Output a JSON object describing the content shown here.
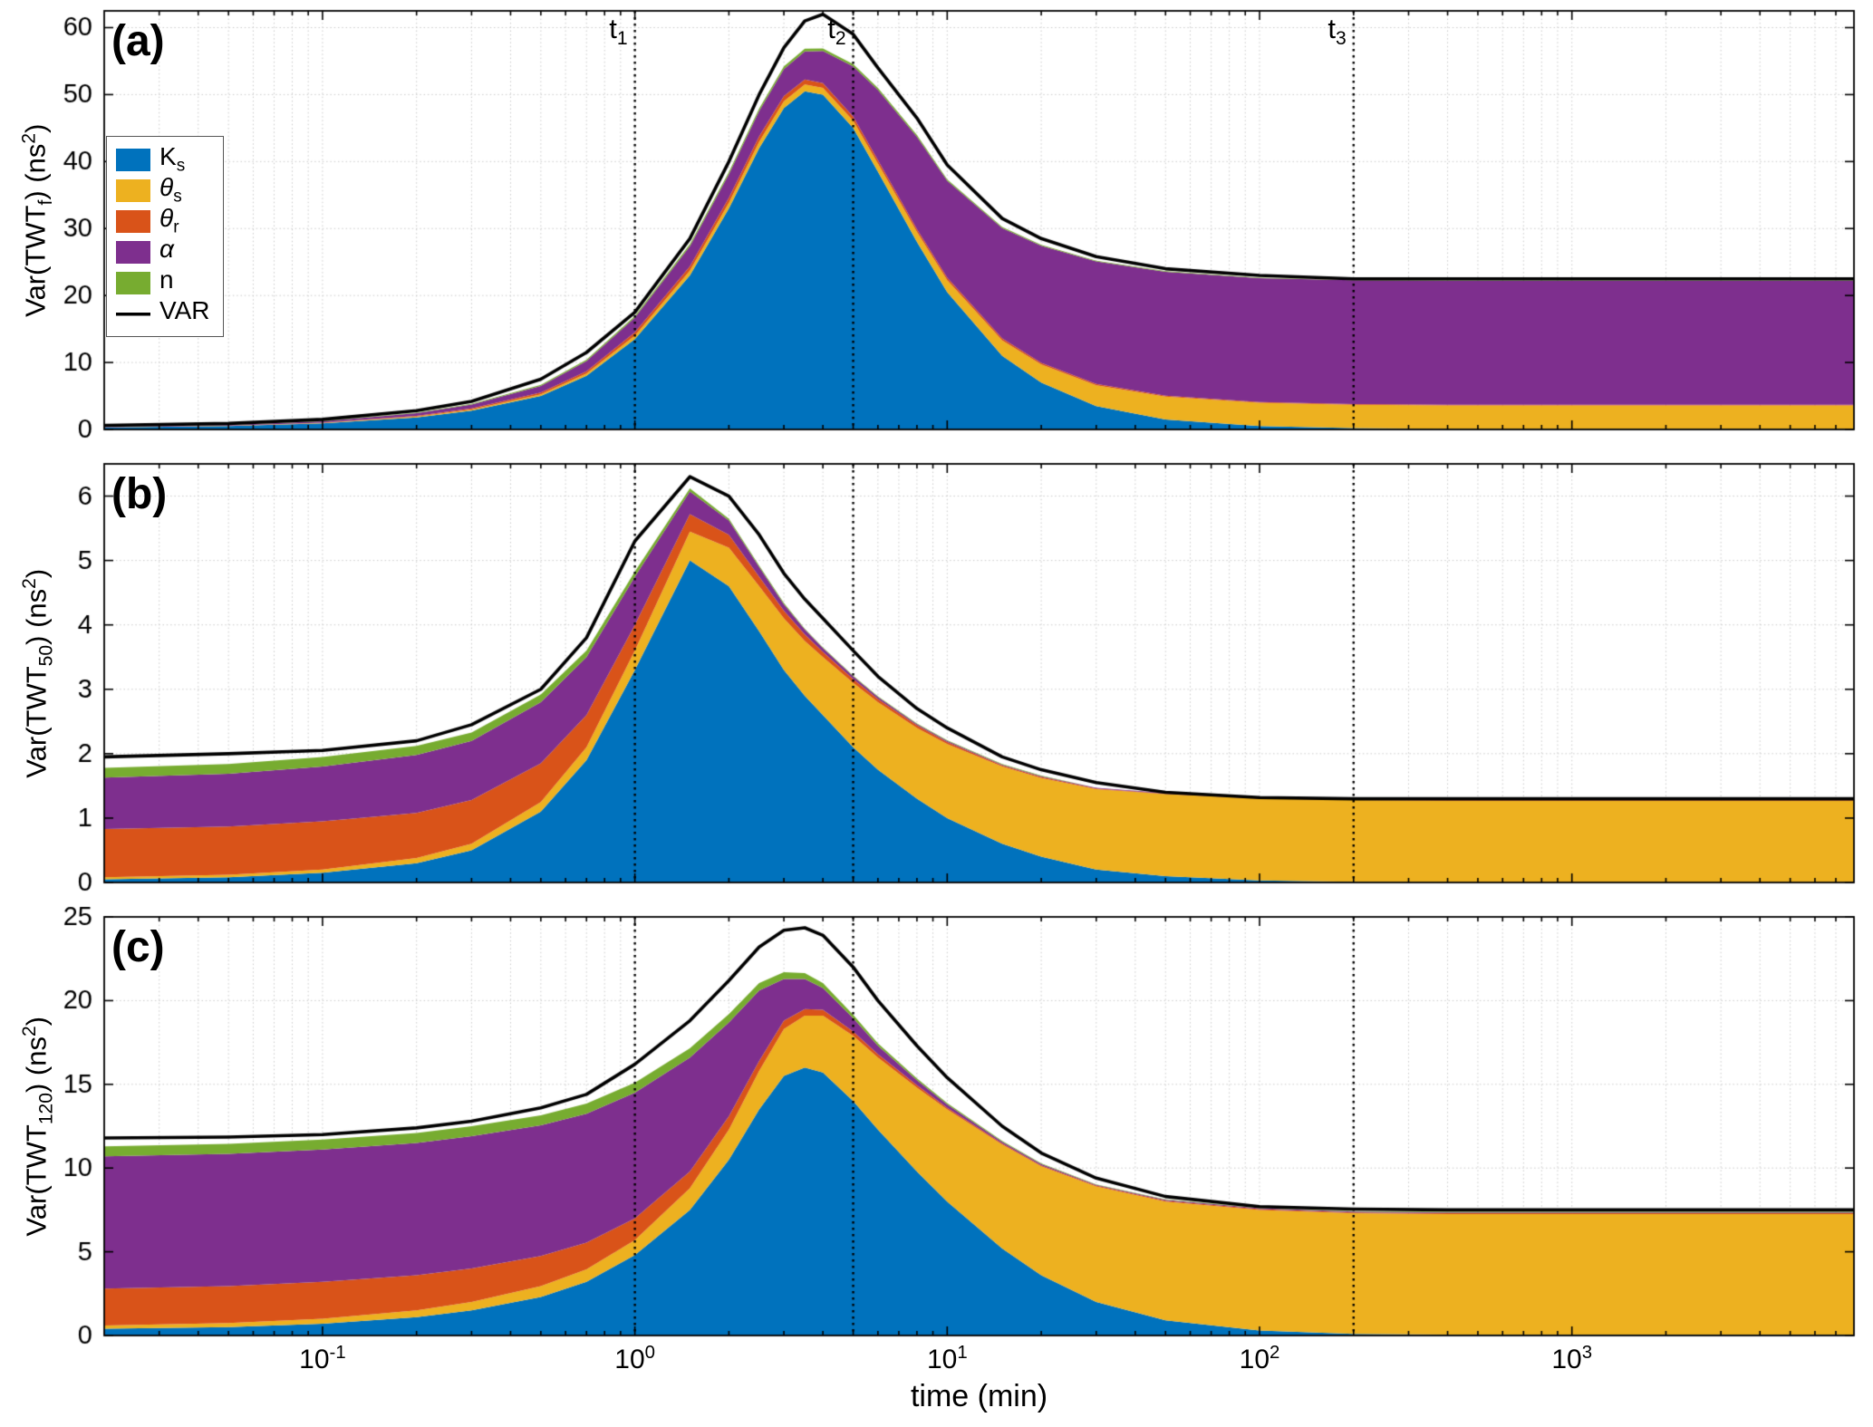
{
  "figure": {
    "xlabel": "time (min)",
    "xlim": [
      0.02,
      8000
    ],
    "x_ticks": [
      {
        "value": 0.1,
        "base": "10",
        "exp": "-1"
      },
      {
        "value": 1,
        "base": "10",
        "exp": "0"
      },
      {
        "value": 10,
        "base": "10",
        "exp": "1"
      },
      {
        "value": 100,
        "base": "10",
        "exp": "2"
      },
      {
        "value": 1000,
        "base": "10",
        "exp": "3"
      }
    ],
    "t_lines": [
      {
        "x": 1,
        "main": "t",
        "sub": "1"
      },
      {
        "x": 5,
        "main": "t",
        "sub": "2"
      },
      {
        "x": 200,
        "main": "t",
        "sub": "3"
      }
    ]
  },
  "colors": {
    "Ks": "#0072BD",
    "theta_s": "#EDB120",
    "theta_r": "#D95319",
    "alpha": "#7E2F8E",
    "n": "#77AC30",
    "VAR": "#000000",
    "grid": "#c9c9c9"
  },
  "legend": {
    "entries": [
      {
        "main": "K",
        "sub": "s",
        "series": "Ks"
      },
      {
        "main": "θ",
        "sub": "s",
        "series": "theta_s"
      },
      {
        "main": "θ",
        "sub": "r",
        "series": "theta_r"
      },
      {
        "main": "α",
        "sub": "",
        "series": "alpha"
      },
      {
        "main": "n",
        "sub": "",
        "series": "n"
      },
      {
        "main": "VAR",
        "sub": "",
        "series": "VAR"
      }
    ]
  },
  "chart_data": [
    {
      "type": "area",
      "panel_label": "(a)",
      "ylabel": {
        "pre": "Var(TWT",
        "sub": "f",
        "mid": ") (ns",
        "sup": "2",
        "post": ")"
      },
      "ylim": [
        0,
        62.5
      ],
      "yticks": [
        0,
        10,
        20,
        30,
        40,
        50,
        60
      ],
      "x": [
        0.02,
        0.05,
        0.1,
        0.2,
        0.3,
        0.5,
        0.7,
        1,
        1.5,
        2,
        2.5,
        3,
        3.5,
        4,
        5,
        6,
        8,
        10,
        15,
        20,
        30,
        50,
        100,
        200,
        400,
        1000,
        3000,
        8000
      ],
      "series": [
        {
          "name": "Ks",
          "values": [
            0.3,
            0.5,
            0.9,
            1.8,
            2.8,
            5,
            8,
            13.5,
            23,
            33,
            42,
            48,
            50.5,
            50,
            45,
            38.5,
            28,
            20.5,
            11,
            7,
            3.5,
            1.5,
            0.5,
            0.2,
            0.1,
            0.1,
            0.1,
            0.1
          ]
        },
        {
          "name": "theta_s",
          "values": [
            0.03,
            0.05,
            0.08,
            0.12,
            0.18,
            0.25,
            0.35,
            0.5,
            0.7,
            0.85,
            0.95,
            1,
            1,
            1,
            1.1,
            1.2,
            1.5,
            1.8,
            2.3,
            2.7,
            3.1,
            3.4,
            3.5,
            3.5,
            3.5,
            3.5,
            3.5,
            3.5
          ]
        },
        {
          "name": "theta_r",
          "values": [
            0.02,
            0.03,
            0.05,
            0.1,
            0.15,
            0.25,
            0.35,
            0.5,
            0.65,
            0.75,
            0.8,
            0.8,
            0.75,
            0.7,
            0.6,
            0.5,
            0.4,
            0.35,
            0.28,
            0.24,
            0.2,
            0.15,
            0.1,
            0.1,
            0.1,
            0.1,
            0.1,
            0.1
          ]
        },
        {
          "name": "alpha",
          "values": [
            0.05,
            0.1,
            0.2,
            0.4,
            0.6,
            1,
            1.5,
            2.2,
            3,
            3.5,
            3.8,
            4,
            4.2,
            4.8,
            7.5,
            10.5,
            13.8,
            14.5,
            16.5,
            17.5,
            18.3,
            18.5,
            18.5,
            18.5,
            18.5,
            18.5,
            18.5,
            18.5
          ]
        },
        {
          "name": "n",
          "values": [
            0.02,
            0.03,
            0.05,
            0.08,
            0.1,
            0.15,
            0.2,
            0.25,
            0.3,
            0.35,
            0.38,
            0.4,
            0.4,
            0.4,
            0.35,
            0.3,
            0.25,
            0.2,
            0.15,
            0.12,
            0.1,
            0.08,
            0.05,
            0.05,
            0.05,
            0.05,
            0.05,
            0.05
          ]
        }
      ],
      "total": {
        "name": "VAR",
        "values": [
          0.6,
          0.9,
          1.5,
          2.8,
          4.2,
          7.5,
          11.5,
          17.5,
          28.5,
          40,
          50,
          57,
          61,
          62,
          59,
          54,
          46.5,
          39.5,
          31.5,
          28.5,
          25.8,
          24,
          23,
          22.5,
          22.5,
          22.5,
          22.5,
          22.5
        ]
      }
    },
    {
      "type": "area",
      "panel_label": "(b)",
      "ylabel": {
        "pre": "Var(TWT",
        "sub": "50",
        "mid": ") (ns",
        "sup": "2",
        "post": ")"
      },
      "ylim": [
        0,
        6.5
      ],
      "yticks": [
        0,
        1,
        2,
        3,
        4,
        5,
        6
      ],
      "x": [
        0.02,
        0.05,
        0.1,
        0.2,
        0.3,
        0.5,
        0.7,
        1,
        1.5,
        2,
        2.5,
        3,
        3.5,
        4,
        5,
        6,
        8,
        10,
        15,
        20,
        30,
        50,
        100,
        200,
        400,
        1000,
        3000,
        8000
      ],
      "series": [
        {
          "name": "Ks",
          "values": [
            0.05,
            0.08,
            0.15,
            0.3,
            0.5,
            1.1,
            1.9,
            3.3,
            5,
            4.6,
            3.9,
            3.3,
            2.9,
            2.6,
            2.1,
            1.75,
            1.3,
            1,
            0.6,
            0.4,
            0.2,
            0.1,
            0.03,
            0.01,
            0,
            0,
            0,
            0
          ]
        },
        {
          "name": "theta_s",
          "values": [
            0.03,
            0.04,
            0.05,
            0.08,
            0.1,
            0.15,
            0.2,
            0.3,
            0.45,
            0.6,
            0.7,
            0.8,
            0.85,
            0.9,
            1,
            1.05,
            1.1,
            1.15,
            1.2,
            1.22,
            1.25,
            1.27,
            1.27,
            1.27,
            1.27,
            1.27,
            1.27,
            1.27
          ]
        },
        {
          "name": "theta_r",
          "values": [
            0.75,
            0.75,
            0.75,
            0.7,
            0.68,
            0.6,
            0.5,
            0.4,
            0.27,
            0.2,
            0.15,
            0.12,
            0.1,
            0.08,
            0.06,
            0.05,
            0.04,
            0.03,
            0.02,
            0.02,
            0.01,
            0.01,
            0.01,
            0.01,
            0.01,
            0.01,
            0.01,
            0.01
          ]
        },
        {
          "name": "alpha",
          "values": [
            0.8,
            0.82,
            0.85,
            0.9,
            0.92,
            0.95,
            0.9,
            0.75,
            0.35,
            0.22,
            0.15,
            0.1,
            0.08,
            0.06,
            0.04,
            0.03,
            0.02,
            0.02,
            0.01,
            0.01,
            0.01,
            0.01,
            0.01,
            0.01,
            0.01,
            0.01,
            0.01,
            0.01
          ]
        },
        {
          "name": "n",
          "values": [
            0.15,
            0.15,
            0.15,
            0.14,
            0.13,
            0.12,
            0.1,
            0.08,
            0.05,
            0.03,
            0.02,
            0.02,
            0.01,
            0.01,
            0.01,
            0.01,
            0.01,
            0.01,
            0.01,
            0.01,
            0,
            0,
            0,
            0,
            0,
            0,
            0,
            0
          ]
        }
      ],
      "total": {
        "name": "VAR",
        "values": [
          1.95,
          2,
          2.05,
          2.2,
          2.45,
          3,
          3.8,
          5.3,
          6.3,
          6,
          5.4,
          4.8,
          4.4,
          4.1,
          3.6,
          3.2,
          2.7,
          2.4,
          1.95,
          1.75,
          1.55,
          1.4,
          1.32,
          1.3,
          1.3,
          1.3,
          1.3,
          1.3
        ]
      }
    },
    {
      "type": "area",
      "panel_label": "(c)",
      "ylabel": {
        "pre": "Var(TWT",
        "sub": "120",
        "mid": ") (ns",
        "sup": "2",
        "post": ")"
      },
      "ylim": [
        0,
        25
      ],
      "yticks": [
        0,
        5,
        10,
        15,
        20,
        25
      ],
      "x": [
        0.02,
        0.05,
        0.1,
        0.2,
        0.3,
        0.5,
        0.7,
        1,
        1.5,
        2,
        2.5,
        3,
        3.5,
        4,
        5,
        6,
        8,
        10,
        15,
        20,
        30,
        50,
        100,
        200,
        400,
        1000,
        3000,
        8000
      ],
      "series": [
        {
          "name": "Ks",
          "values": [
            0.4,
            0.5,
            0.7,
            1.1,
            1.5,
            2.3,
            3.2,
            4.8,
            7.5,
            10.5,
            13.5,
            15.5,
            16,
            15.7,
            14,
            12.3,
            9.8,
            8,
            5.2,
            3.6,
            2,
            0.9,
            0.3,
            0.1,
            0.05,
            0.05,
            0.05,
            0.05
          ]
        },
        {
          "name": "theta_s",
          "values": [
            0.2,
            0.25,
            0.3,
            0.4,
            0.5,
            0.65,
            0.75,
            0.9,
            1.3,
            1.8,
            2.3,
            2.8,
            3.1,
            3.4,
            3.9,
            4.3,
            5,
            5.5,
            6.2,
            6.5,
            6.9,
            7.1,
            7.2,
            7.2,
            7.2,
            7.2,
            7.2,
            7.2
          ]
        },
        {
          "name": "theta_r",
          "values": [
            2.2,
            2.2,
            2.2,
            2.1,
            2,
            1.8,
            1.6,
            1.3,
            1,
            0.8,
            0.6,
            0.5,
            0.4,
            0.35,
            0.25,
            0.2,
            0.15,
            0.1,
            0.07,
            0.06,
            0.05,
            0.05,
            0.05,
            0.05,
            0.05,
            0.05,
            0.05,
            0.05
          ]
        },
        {
          "name": "alpha",
          "values": [
            7.9,
            7.9,
            7.9,
            7.9,
            7.9,
            7.8,
            7.7,
            7.5,
            6.8,
            5.6,
            4.2,
            2.5,
            1.8,
            1.3,
            0.8,
            0.5,
            0.3,
            0.2,
            0.1,
            0.08,
            0.05,
            0.05,
            0.05,
            0.05,
            0.05,
            0.05,
            0.05,
            0.05
          ]
        },
        {
          "name": "n",
          "values": [
            0.6,
            0.6,
            0.6,
            0.6,
            0.6,
            0.6,
            0.6,
            0.6,
            0.55,
            0.5,
            0.45,
            0.4,
            0.35,
            0.3,
            0.2,
            0.15,
            0.1,
            0.08,
            0.05,
            0.04,
            0.03,
            0.03,
            0.03,
            0.03,
            0.03,
            0.03,
            0.03,
            0.03
          ]
        }
      ],
      "total": {
        "name": "VAR",
        "values": [
          11.8,
          11.85,
          12,
          12.4,
          12.8,
          13.6,
          14.4,
          16.2,
          18.8,
          21.2,
          23.2,
          24.2,
          24.35,
          23.9,
          22,
          20,
          17.3,
          15.4,
          12.5,
          10.9,
          9.4,
          8.3,
          7.7,
          7.55,
          7.5,
          7.5,
          7.5,
          7.5
        ]
      }
    }
  ]
}
